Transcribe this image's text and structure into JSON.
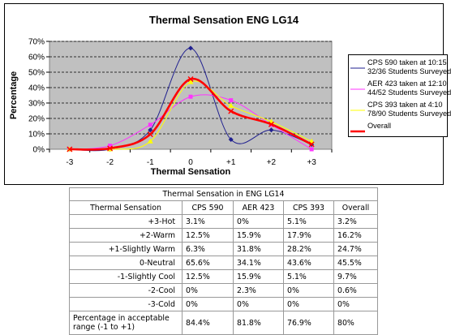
{
  "chart_data": {
    "type": "line",
    "title": "Thermal Sensation ENG LG14",
    "xlabel": "Thermal Sensation",
    "ylabel": "Percentage",
    "categories": [
      "-3",
      "-2",
      "-1",
      "0",
      "+1",
      "+2",
      "+3"
    ],
    "y_ticks": [
      "0%",
      "10%",
      "20%",
      "30%",
      "40%",
      "50%",
      "60%",
      "70%"
    ],
    "ylim": [
      0,
      70
    ],
    "grid": true,
    "legend_position": "right",
    "series": [
      {
        "name": "CPS 590 taken at 10:15\n32/36 Students Surveyed",
        "color": "#1f1f8f",
        "marker": "diamond",
        "values": [
          0,
          0,
          12.5,
          65.6,
          6.3,
          12.5,
          3.1
        ]
      },
      {
        "name": "AER 423 taken at 12:10\n44/52 Students Surveyed",
        "color": "#ff33ff",
        "marker": "square",
        "values": [
          0,
          2.3,
          15.9,
          34.1,
          31.8,
          15.9,
          0
        ]
      },
      {
        "name": "CPS 393 taken at 4:10\n78/90 Students Surveyed",
        "color": "#ffff00",
        "marker": "triangle",
        "values": [
          0,
          0,
          5.1,
          43.6,
          28.2,
          17.9,
          5.1
        ]
      },
      {
        "name": "Overall",
        "color": "#ff0000",
        "marker": "x",
        "values": [
          0,
          0.6,
          9.7,
          45.5,
          24.7,
          16.2,
          3.2
        ]
      }
    ]
  },
  "table": {
    "caption": "Thermal Sensation in ENG LG14",
    "headers": [
      "Thermal Sensation",
      "CPS 590",
      "AER 423",
      "CPS 393",
      "Overall"
    ],
    "rows": [
      [
        "+3-Hot",
        "3.1%",
        "0%",
        "5.1%",
        "3.2%"
      ],
      [
        "+2-Warm",
        "12.5%",
        "15.9%",
        "17.9%",
        "16.2%"
      ],
      [
        "+1-Slightly Warm",
        "6.3%",
        "31.8%",
        "28.2%",
        "24.7%"
      ],
      [
        "0-Neutral",
        "65.6%",
        "34.1%",
        "43.6%",
        "45.5%"
      ],
      [
        "-1-Slightly Cool",
        "12.5%",
        "15.9%",
        "5.1%",
        "9.7%"
      ],
      [
        "-2-Cool",
        "0%",
        "2.3%",
        "0%",
        "0.6%"
      ],
      [
        "-3-Cold",
        "0%",
        "0%",
        "0%",
        "0%"
      ]
    ],
    "footer": [
      "Percentage in acceptable range (-1 to +1)",
      "84.4%",
      "81.8%",
      "76.9%",
      "80%"
    ]
  }
}
